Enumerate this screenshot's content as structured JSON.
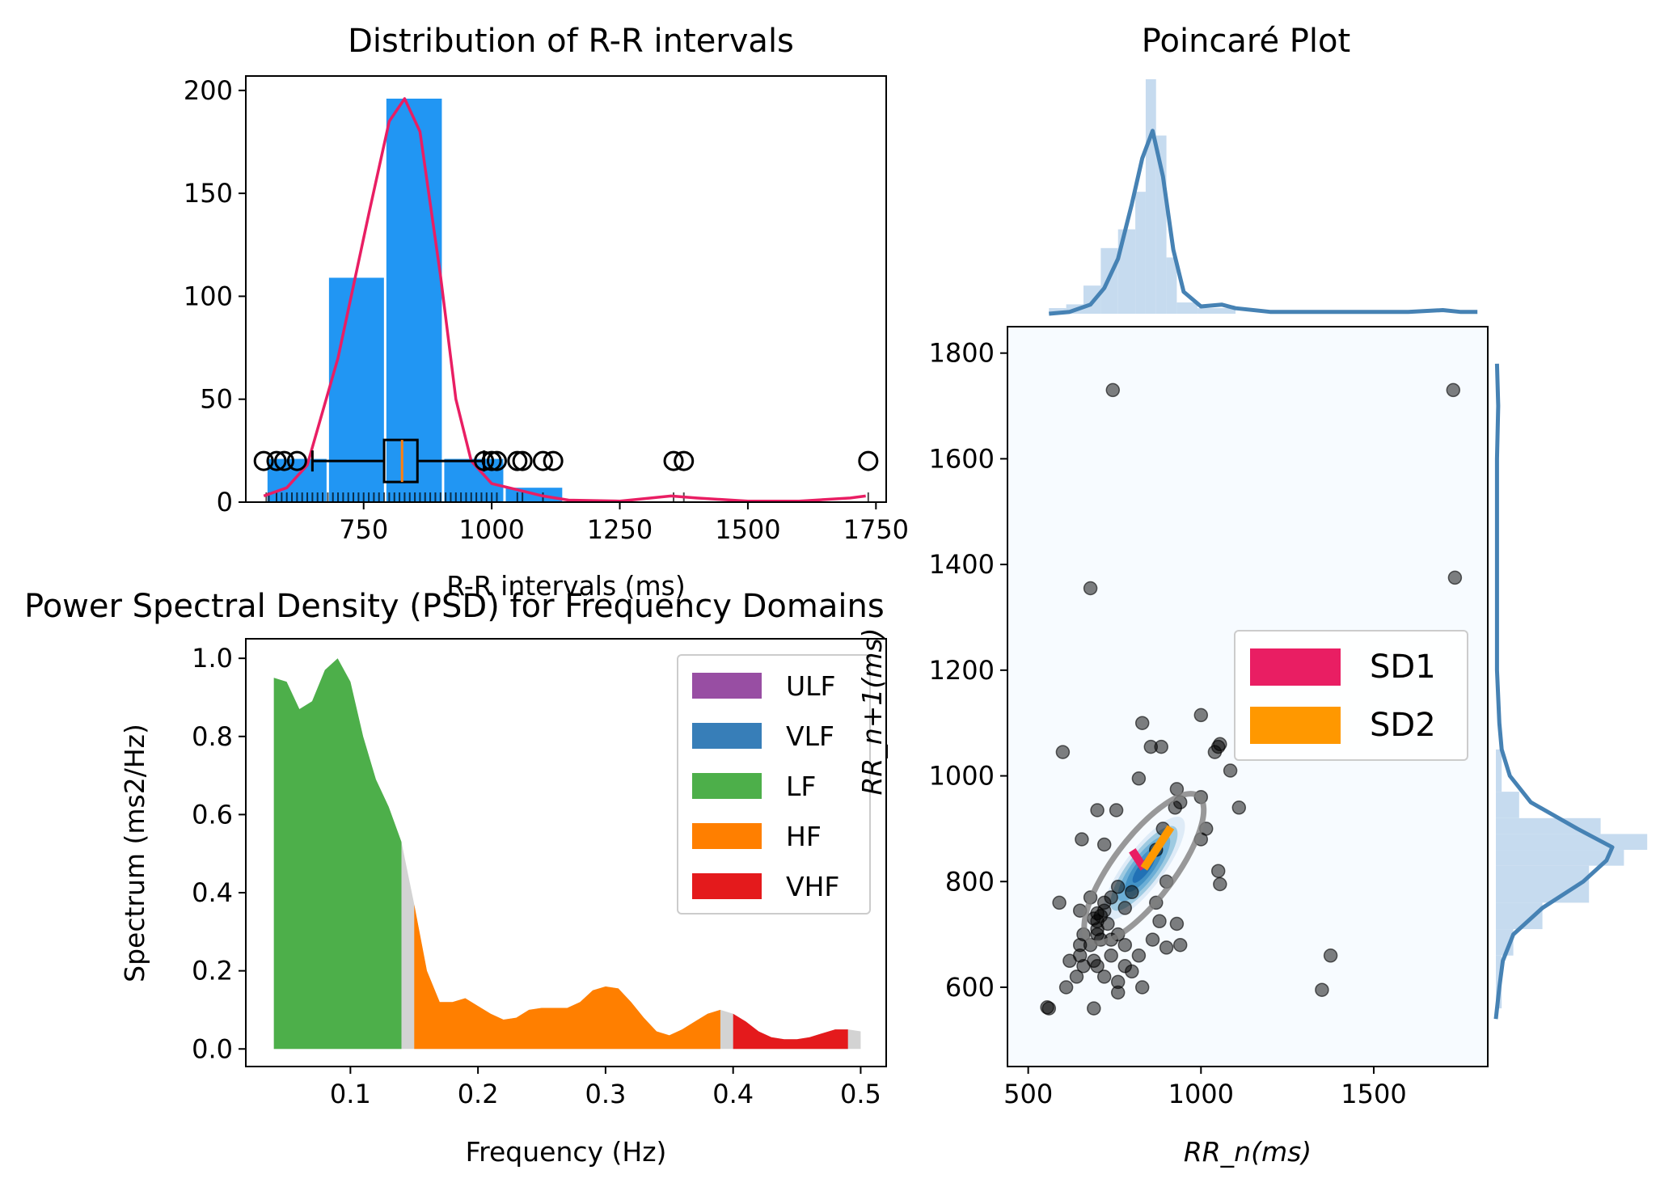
{
  "chart_data": [
    {
      "type": "histogram",
      "title": "Distribution of R-R intervals",
      "xlabel": "R-R intervals (ms)",
      "ylabel": "",
      "xlim": [
        520,
        1770
      ],
      "ylim": [
        0,
        207
      ],
      "xticks": [
        750,
        1000,
        1250,
        1500,
        1750
      ],
      "yticks": [
        0,
        50,
        100,
        150,
        200
      ],
      "bar_color": "#2196f3",
      "bins": [
        {
          "x0": 560,
          "x1": 680,
          "count": 21
        },
        {
          "x0": 680,
          "x1": 792,
          "count": 109
        },
        {
          "x0": 792,
          "x1": 905,
          "count": 196
        },
        {
          "x0": 905,
          "x1": 1025,
          "count": 21
        },
        {
          "x0": 1025,
          "x1": 1140,
          "count": 7
        }
      ],
      "density": {
        "color": "#e91e63",
        "points": [
          [
            555,
            3
          ],
          [
            600,
            7
          ],
          [
            640,
            18
          ],
          [
            700,
            70
          ],
          [
            760,
            140
          ],
          [
            800,
            185
          ],
          [
            830,
            196
          ],
          [
            860,
            180
          ],
          [
            900,
            110
          ],
          [
            930,
            50
          ],
          [
            960,
            20
          ],
          [
            1000,
            9
          ],
          [
            1050,
            6
          ],
          [
            1100,
            3
          ],
          [
            1150,
            1
          ],
          [
            1250,
            0.5
          ],
          [
            1350,
            3
          ],
          [
            1400,
            2
          ],
          [
            1500,
            0.5
          ],
          [
            1600,
            0.5
          ],
          [
            1700,
            2
          ],
          [
            1730,
            3
          ]
        ]
      },
      "boxplot": {
        "y": 20,
        "whisker_low": 650,
        "q1": 790,
        "median": 825,
        "q3": 855,
        "whisker_high": 985,
        "median_color": "#ff7f0e",
        "outliers": [
          555,
          580,
          595,
          620,
          985,
          1000,
          1010,
          1050,
          1060,
          1100,
          1120,
          1355,
          1375,
          1735
        ]
      },
      "rug": [
        560,
        565,
        580,
        590,
        600,
        610,
        620,
        630,
        640,
        650,
        660,
        670,
        680,
        690,
        700,
        710,
        720,
        730,
        740,
        750,
        760,
        770,
        780,
        790,
        800,
        810,
        820,
        830,
        840,
        850,
        860,
        870,
        880,
        890,
        900,
        910,
        920,
        930,
        940,
        950,
        960,
        970,
        980,
        990,
        1000,
        1010,
        1050,
        1060,
        1100,
        1355,
        1375,
        1735
      ]
    },
    {
      "type": "area",
      "title": "Power Spectral Density (PSD) for Frequency Domains",
      "xlabel": "Frequency (Hz)",
      "ylabel": "Spectrum (ms2/Hz)",
      "xlim": [
        0.018,
        0.52
      ],
      "ylim": [
        -0.045,
        1.05
      ],
      "xticks": [
        0.1,
        0.2,
        0.3,
        0.4,
        0.5
      ],
      "yticks": [
        0.0,
        0.2,
        0.4,
        0.6,
        0.8,
        1.0
      ],
      "gap_color": "#d3d3d3",
      "bands": [
        {
          "name": "ULF",
          "color": "#984ea3",
          "range": [
            0,
            0
          ]
        },
        {
          "name": "VLF",
          "color": "#377eb8",
          "range": [
            0,
            0
          ]
        },
        {
          "name": "LF",
          "color": "#4daf4a",
          "range": [
            0.04,
            0.14
          ]
        },
        {
          "name": "HF",
          "color": "#ff7f00",
          "range": [
            0.15,
            0.39
          ]
        },
        {
          "name": "VHF",
          "color": "#e41a1c",
          "range": [
            0.4,
            0.49
          ]
        }
      ],
      "psd": [
        [
          0.04,
          0.95
        ],
        [
          0.05,
          0.94
        ],
        [
          0.06,
          0.87
        ],
        [
          0.07,
          0.89
        ],
        [
          0.08,
          0.97
        ],
        [
          0.09,
          1.0
        ],
        [
          0.1,
          0.94
        ],
        [
          0.11,
          0.8
        ],
        [
          0.12,
          0.69
        ],
        [
          0.13,
          0.62
        ],
        [
          0.14,
          0.53
        ],
        [
          0.15,
          0.37
        ],
        [
          0.16,
          0.2
        ],
        [
          0.17,
          0.12
        ],
        [
          0.18,
          0.12
        ],
        [
          0.19,
          0.13
        ],
        [
          0.2,
          0.11
        ],
        [
          0.21,
          0.09
        ],
        [
          0.22,
          0.075
        ],
        [
          0.23,
          0.08
        ],
        [
          0.24,
          0.1
        ],
        [
          0.25,
          0.105
        ],
        [
          0.26,
          0.105
        ],
        [
          0.27,
          0.105
        ],
        [
          0.28,
          0.12
        ],
        [
          0.29,
          0.15
        ],
        [
          0.3,
          0.16
        ],
        [
          0.31,
          0.155
        ],
        [
          0.32,
          0.12
        ],
        [
          0.33,
          0.08
        ],
        [
          0.34,
          0.045
        ],
        [
          0.35,
          0.035
        ],
        [
          0.36,
          0.05
        ],
        [
          0.37,
          0.07
        ],
        [
          0.38,
          0.09
        ],
        [
          0.39,
          0.1
        ],
        [
          0.4,
          0.09
        ],
        [
          0.41,
          0.07
        ],
        [
          0.42,
          0.045
        ],
        [
          0.43,
          0.03
        ],
        [
          0.44,
          0.025
        ],
        [
          0.45,
          0.025
        ],
        [
          0.46,
          0.03
        ],
        [
          0.47,
          0.04
        ],
        [
          0.48,
          0.05
        ],
        [
          0.49,
          0.05
        ],
        [
          0.5,
          0.045
        ]
      ]
    },
    {
      "type": "scatter",
      "title": "Poincaré Plot",
      "xlabel": "RR_n(ms)",
      "ylabel": "RR_n+1(ms)",
      "xlim": [
        440,
        1830
      ],
      "ylim": [
        450,
        1850
      ],
      "xticks": [
        500,
        1000,
        1500
      ],
      "yticks": [
        600,
        800,
        1000,
        1200,
        1400,
        1600,
        1800
      ],
      "background": "#f7fbff",
      "point_color": "#000000",
      "kde_colors": [
        "#deebf7",
        "#9ecae1",
        "#6baed6",
        "#4292c6",
        "#2171b5"
      ],
      "ellipse": {
        "cx": 835,
        "cy": 825,
        "sd1": 30,
        "sd2": 110,
        "angle_deg": 45,
        "color": "#808080"
      },
      "sd1_color": "#e91e63",
      "sd2_color": "#ff9800",
      "legend": [
        "SD1",
        "SD2"
      ],
      "points": [
        [
          745,
          1730
        ],
        [
          1730,
          1730
        ],
        [
          680,
          1355
        ],
        [
          1735,
          1375
        ],
        [
          600,
          1045
        ],
        [
          830,
          1100
        ],
        [
          855,
          1055
        ],
        [
          885,
          1055
        ],
        [
          1000,
          1115
        ],
        [
          1040,
          1045
        ],
        [
          1050,
          1055
        ],
        [
          1055,
          1060
        ],
        [
          1085,
          1010
        ],
        [
          820,
          995
        ],
        [
          1110,
          940
        ],
        [
          700,
          935
        ],
        [
          755,
          935
        ],
        [
          1000,
          960
        ],
        [
          1015,
          900
        ],
        [
          1000,
          880
        ],
        [
          655,
          880
        ],
        [
          720,
          870
        ],
        [
          1050,
          820
        ],
        [
          1055,
          795
        ],
        [
          590,
          760
        ],
        [
          680,
          770
        ],
        [
          650,
          745
        ],
        [
          700,
          740
        ],
        [
          930,
          975
        ],
        [
          940,
          950
        ],
        [
          925,
          940
        ],
        [
          890,
          900
        ],
        [
          870,
          860
        ],
        [
          800,
          780
        ],
        [
          870,
          760
        ],
        [
          780,
          750
        ],
        [
          760,
          700
        ],
        [
          740,
          690
        ],
        [
          700,
          725
        ],
        [
          660,
          700
        ],
        [
          650,
          680
        ],
        [
          680,
          680
        ],
        [
          700,
          700
        ],
        [
          710,
          690
        ],
        [
          730,
          720
        ],
        [
          650,
          660
        ],
        [
          690,
          650
        ],
        [
          620,
          650
        ],
        [
          610,
          600
        ],
        [
          640,
          620
        ],
        [
          660,
          640
        ],
        [
          700,
          640
        ],
        [
          740,
          660
        ],
        [
          780,
          640
        ],
        [
          760,
          610
        ],
        [
          820,
          660
        ],
        [
          830,
          600
        ],
        [
          800,
          630
        ],
        [
          860,
          690
        ],
        [
          900,
          675
        ],
        [
          940,
          680
        ],
        [
          880,
          725
        ],
        [
          1375,
          660
        ],
        [
          1350,
          595
        ],
        [
          690,
          560
        ],
        [
          560,
          560
        ],
        [
          555,
          562
        ],
        [
          760,
          590
        ],
        [
          720,
          620
        ],
        [
          900,
          800
        ],
        [
          930,
          720
        ],
        [
          780,
          680
        ],
        [
          720,
          760
        ],
        [
          700,
          710
        ],
        [
          690,
          730
        ],
        [
          710,
          735
        ],
        [
          720,
          745
        ],
        [
          740,
          770
        ],
        [
          760,
          790
        ]
      ],
      "marginal_top": {
        "color": "#4682b4",
        "hist_color": "#c6dbef",
        "kde": [
          [
            560,
            0.0
          ],
          [
            620,
            0.01
          ],
          [
            680,
            0.05
          ],
          [
            720,
            0.14
          ],
          [
            760,
            0.3
          ],
          [
            800,
            0.6
          ],
          [
            830,
            0.85
          ],
          [
            860,
            1.0
          ],
          [
            890,
            0.75
          ],
          [
            920,
            0.35
          ],
          [
            950,
            0.12
          ],
          [
            1000,
            0.04
          ],
          [
            1060,
            0.05
          ],
          [
            1100,
            0.03
          ],
          [
            1200,
            0.01
          ],
          [
            1400,
            0.01
          ],
          [
            1600,
            0.01
          ],
          [
            1700,
            0.02
          ],
          [
            1750,
            0.01
          ],
          [
            1800,
            0.01
          ]
        ],
        "hist": [
          [
            560,
            610,
            0.03
          ],
          [
            610,
            660,
            0.05
          ],
          [
            660,
            710,
            0.15
          ],
          [
            710,
            760,
            0.35
          ],
          [
            760,
            810,
            0.45
          ],
          [
            810,
            840,
            0.65
          ],
          [
            840,
            870,
            1.25
          ],
          [
            870,
            900,
            0.95
          ],
          [
            900,
            930,
            0.3
          ],
          [
            930,
            990,
            0.06
          ],
          [
            990,
            1100,
            0.03
          ]
        ]
      },
      "marginal_right": {
        "color": "#4682b4",
        "hist_color": "#c6dbef",
        "kde": [
          [
            540,
            0.0
          ],
          [
            600,
            0.03
          ],
          [
            650,
            0.06
          ],
          [
            700,
            0.15
          ],
          [
            750,
            0.4
          ],
          [
            800,
            0.75
          ],
          [
            840,
            0.95
          ],
          [
            865,
            1.0
          ],
          [
            900,
            0.7
          ],
          [
            950,
            0.3
          ],
          [
            1000,
            0.12
          ],
          [
            1050,
            0.05
          ],
          [
            1100,
            0.03
          ],
          [
            1200,
            0.01
          ],
          [
            1400,
            0.01
          ],
          [
            1600,
            0.01
          ],
          [
            1700,
            0.02
          ],
          [
            1780,
            0.01
          ]
        ],
        "hist": [
          [
            560,
            660,
            0.05
          ],
          [
            660,
            710,
            0.15
          ],
          [
            710,
            760,
            0.4
          ],
          [
            760,
            830,
            0.8
          ],
          [
            830,
            860,
            1.1
          ],
          [
            860,
            890,
            1.3
          ],
          [
            890,
            920,
            0.9
          ],
          [
            920,
            970,
            0.2
          ],
          [
            970,
            1050,
            0.05
          ]
        ]
      }
    }
  ]
}
